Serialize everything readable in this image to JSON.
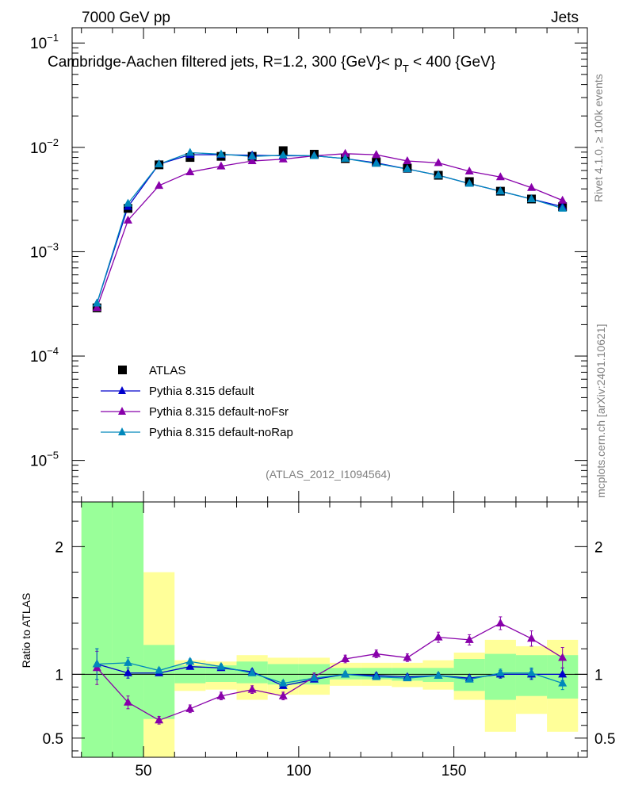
{
  "header": {
    "energy": "7000 GeV pp",
    "category": "Jets",
    "title_main": "Cambridge-Aachen filtered jets, R=1.2, 300 {GeV}< p",
    "title_sub": "T",
    "title_end": " < 400 {GeV}",
    "side_rivet": "Rivet 4.1.0, ≥ 100k events",
    "side_mcplots": "mcplots.cern.ch [arXiv:2401.10621]",
    "analysis_id": "(ATLAS_2012_I1094564)"
  },
  "chart_data": [
    {
      "type": "scatter",
      "panel": "main",
      "yscale": "log",
      "xlim": [
        27,
        193
      ],
      "ylim": [
        4e-06,
        0.14
      ],
      "x_ticks": [
        50,
        100,
        150
      ],
      "y_ticks": [
        {
          "value": 0.1,
          "base": "10",
          "exp": "−1"
        },
        {
          "value": 0.01,
          "base": "10",
          "exp": "−2"
        },
        {
          "value": 0.001,
          "base": "10",
          "exp": "−3"
        },
        {
          "value": 0.0001,
          "base": "10",
          "exp": "−4"
        },
        {
          "value": 1e-05,
          "base": "10",
          "exp": "−5"
        }
      ],
      "x": [
        35,
        45,
        55,
        65,
        75,
        85,
        95,
        105,
        115,
        125,
        135,
        145,
        155,
        165,
        175,
        185
      ],
      "legend": [
        "ATLAS",
        "Pythia 8.315 default",
        "Pythia 8.315 default-noFsr",
        "Pythia 8.315 default-noRap"
      ],
      "series": [
        {
          "name": "ATLAS",
          "color": "#000000",
          "marker": "square",
          "values": [
            0.00029,
            0.0026,
            0.0068,
            0.008,
            0.0082,
            0.0082,
            0.0093,
            0.0086,
            0.0078,
            0.0072,
            0.0063,
            0.0054,
            0.0047,
            0.0038,
            0.0032,
            0.0027
          ]
        },
        {
          "name": "Pythia 8.315 default",
          "color": "#0000cc",
          "marker": "triangle",
          "values": [
            0.00032,
            0.0027,
            0.0069,
            0.0085,
            0.0085,
            0.0084,
            0.0083,
            0.0083,
            0.0078,
            0.0071,
            0.0062,
            0.0054,
            0.0045,
            0.0038,
            0.0032,
            0.0027
          ]
        },
        {
          "name": "Pythia 8.315 default-noFsr",
          "color": "#8800aa",
          "marker": "triangle",
          "values": [
            0.00029,
            0.002,
            0.0043,
            0.0058,
            0.0066,
            0.0074,
            0.0077,
            0.0083,
            0.0087,
            0.0085,
            0.0074,
            0.0071,
            0.0059,
            0.0052,
            0.0041,
            0.0031
          ]
        },
        {
          "name": "Pythia 8.315 default-noRap",
          "color": "#0088bb",
          "marker": "triangle",
          "values": [
            0.00032,
            0.0029,
            0.0069,
            0.0089,
            0.0086,
            0.0082,
            0.0084,
            0.0083,
            0.0078,
            0.007,
            0.0062,
            0.0054,
            0.0045,
            0.0038,
            0.0032,
            0.0026
          ]
        }
      ]
    },
    {
      "type": "scatter",
      "panel": "ratio",
      "ylabel": "Ratio to ATLAS",
      "xlim": [
        27,
        193
      ],
      "ylim": [
        0.35,
        2.35
      ],
      "x_ticks": [
        50,
        100,
        150
      ],
      "y_ticks": [
        0.5,
        1,
        2
      ],
      "band_edges": [
        30,
        40,
        50,
        60,
        70,
        80,
        90,
        100,
        110,
        120,
        130,
        140,
        150,
        160,
        170,
        180,
        190
      ],
      "band_inner": [
        [
          0.35,
          2.35
        ],
        [
          0.35,
          2.35
        ],
        [
          0.65,
          1.23
        ],
        [
          0.93,
          1.07
        ],
        [
          0.94,
          1.07
        ],
        [
          0.93,
          1.1
        ],
        [
          0.92,
          1.08
        ],
        [
          0.92,
          1.08
        ],
        [
          0.96,
          1.05
        ],
        [
          0.96,
          1.05
        ],
        [
          0.95,
          1.05
        ],
        [
          0.94,
          1.05
        ],
        [
          0.87,
          1.12
        ],
        [
          0.8,
          1.16
        ],
        [
          0.83,
          1.15
        ],
        [
          0.81,
          1.15
        ]
      ],
      "band_outer": [
        [
          0.35,
          2.35
        ],
        [
          0.35,
          2.2
        ],
        [
          0.35,
          1.8
        ],
        [
          0.87,
          1.11
        ],
        [
          0.88,
          1.1
        ],
        [
          0.8,
          1.15
        ],
        [
          0.84,
          1.13
        ],
        [
          0.84,
          1.13
        ],
        [
          0.91,
          1.09
        ],
        [
          0.91,
          1.09
        ],
        [
          0.9,
          1.09
        ],
        [
          0.88,
          1.11
        ],
        [
          0.8,
          1.17
        ],
        [
          0.55,
          1.27
        ],
        [
          0.69,
          1.22
        ],
        [
          0.55,
          1.27
        ]
      ],
      "x": [
        35,
        45,
        55,
        65,
        75,
        85,
        95,
        105,
        115,
        125,
        135,
        145,
        155,
        165,
        175,
        185
      ],
      "series": [
        {
          "name": "Pythia 8.315 default",
          "color": "#0000cc",
          "values": [
            1.08,
            1.01,
            1.01,
            1.06,
            1.05,
            1.02,
            0.91,
            0.96,
            1.0,
            0.99,
            0.98,
            0.99,
            0.97,
            1.0,
            1.0,
            1.0
          ],
          "errors": [
            0.12,
            0.04,
            0.02,
            0.02,
            0.02,
            0.02,
            0.02,
            0.02,
            0.02,
            0.02,
            0.02,
            0.02,
            0.02,
            0.03,
            0.04,
            0.05
          ]
        },
        {
          "name": "Pythia 8.315 default-noFsr",
          "color": "#8800aa",
          "values": [
            1.05,
            0.78,
            0.64,
            0.73,
            0.83,
            0.88,
            0.83,
            0.98,
            1.12,
            1.16,
            1.13,
            1.29,
            1.27,
            1.4,
            1.28,
            1.13
          ],
          "errors": [
            0.13,
            0.05,
            0.03,
            0.03,
            0.03,
            0.03,
            0.03,
            0.03,
            0.03,
            0.03,
            0.03,
            0.04,
            0.04,
            0.05,
            0.06,
            0.08
          ]
        },
        {
          "name": "Pythia 8.315 default-noRap",
          "color": "#0088bb",
          "values": [
            1.08,
            1.09,
            1.03,
            1.1,
            1.06,
            1.01,
            0.93,
            0.97,
            1.0,
            0.98,
            0.97,
            0.99,
            0.96,
            1.01,
            1.01,
            0.93
          ],
          "errors": [
            0.12,
            0.04,
            0.02,
            0.02,
            0.02,
            0.02,
            0.02,
            0.02,
            0.02,
            0.02,
            0.02,
            0.02,
            0.02,
            0.03,
            0.04,
            0.05
          ]
        }
      ]
    }
  ]
}
